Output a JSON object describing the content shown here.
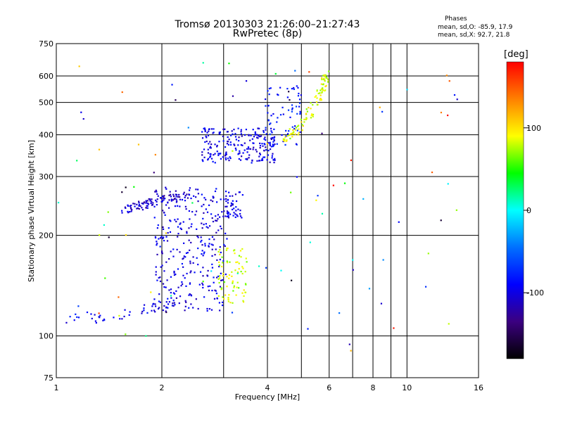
{
  "header": {
    "title_line1": "Tromsø 20130303 21:26:00–21:27:43",
    "title_line2": "RwPretec (8p)"
  },
  "phases_box": {
    "title": "Phases",
    "line_o": "mean, sd,O: -85.9, 17.9",
    "line_x": "mean, sd,X:  92.7, 21.8"
  },
  "colorbar": {
    "label": "[deg]",
    "ticks": [
      "100",
      "0",
      "-100"
    ],
    "tick_values": [
      100,
      0,
      -100
    ],
    "range": [
      -180,
      180
    ],
    "gradient": [
      "#000000",
      "#3b0080",
      "#0000ff",
      "#0070ff",
      "#00ffff",
      "#00ff00",
      "#ffff00",
      "#ff8000",
      "#ff0000"
    ]
  },
  "chart_data": {
    "type": "scatter",
    "title": "Tromsø 20130303 21:26:00–21:27:43",
    "subtitle": "RwPretec (8p)",
    "xlabel": "Frequency [MHz]",
    "ylabel": "Stationary phase Virtual Height [km]",
    "xscale": "log",
    "yscale": "log",
    "xlim": [
      1,
      16
    ],
    "ylim": [
      75,
      750
    ],
    "xticks": [
      1,
      2,
      4,
      6,
      8,
      10,
      16
    ],
    "xtick_labels": [
      "1",
      "2",
      "4",
      "6",
      "8",
      "10",
      "16"
    ],
    "x_minor_gridlines": [
      3,
      5,
      7,
      9
    ],
    "yticks": [
      75,
      100,
      200,
      300,
      400,
      500,
      600,
      750
    ],
    "ytick_labels": [
      "75",
      "100",
      "200",
      "300",
      "400",
      "500",
      "600",
      "750"
    ],
    "grid": true,
    "color_meaning": "phase [deg]",
    "clusters": [
      {
        "name": "E-layer O-mode trace",
        "color": -95,
        "n": 45,
        "points": [
          [
            1.02,
            114
          ],
          [
            1.08,
            112
          ],
          [
            1.15,
            113
          ],
          [
            1.2,
            115
          ],
          [
            1.28,
            113
          ],
          [
            1.35,
            112
          ],
          [
            1.45,
            114
          ],
          [
            1.55,
            116
          ],
          [
            1.65,
            118
          ],
          [
            1.75,
            120
          ],
          [
            1.85,
            121
          ],
          [
            1.95,
            122
          ],
          [
            2.05,
            123
          ],
          [
            2.15,
            125
          ],
          [
            2.25,
            128
          ],
          [
            2.35,
            132
          ],
          [
            2.45,
            137
          ]
        ]
      },
      {
        "name": "F1 O-mode cloud",
        "color": -100,
        "n": 320,
        "fmin": 1.9,
        "fmax": 3.1,
        "hmin": 118,
        "hmax": 280
      },
      {
        "name": "F1 O-mode ledge",
        "color": -110,
        "n": 90,
        "points": [
          [
            1.55,
            238
          ],
          [
            1.65,
            242
          ],
          [
            1.75,
            246
          ],
          [
            1.85,
            250
          ],
          [
            1.95,
            253
          ],
          [
            2.05,
            256
          ],
          [
            2.2,
            258
          ],
          [
            2.4,
            262
          ]
        ]
      },
      {
        "name": "F1 X-mode cloud",
        "color": 80,
        "n": 80,
        "fmin": 2.9,
        "fmax": 3.5,
        "hmin": 125,
        "hmax": 185
      },
      {
        "name": "Faint F1 trace",
        "color": -100,
        "n": 40,
        "fmin": 3.0,
        "fmax": 3.4,
        "hmin": 225,
        "hmax": 270
      },
      {
        "name": "F2 O-mode cloud",
        "color": -100,
        "n": 220,
        "fmin": 2.6,
        "fmax": 4.2,
        "hmin": 330,
        "hmax": 420
      },
      {
        "name": "F2 O-mode tail",
        "color": -80,
        "n": 70,
        "fmin": 3.9,
        "fmax": 5.0,
        "hmin": 370,
        "hmax": 560
      },
      {
        "name": "F2 X-mode trace",
        "color": 85,
        "n": 100,
        "points": [
          [
            4.4,
            385
          ],
          [
            4.6,
            395
          ],
          [
            4.8,
            410
          ],
          [
            5.0,
            430
          ],
          [
            5.2,
            455
          ],
          [
            5.4,
            480
          ],
          [
            5.6,
            520
          ],
          [
            5.8,
            560
          ],
          [
            5.9,
            620
          ]
        ]
      },
      {
        "name": "Sporadic echoes",
        "color": 0,
        "n": 90,
        "fmin": 1.0,
        "fmax": 14.0,
        "hmin": 90,
        "hmax": 660
      }
    ]
  }
}
